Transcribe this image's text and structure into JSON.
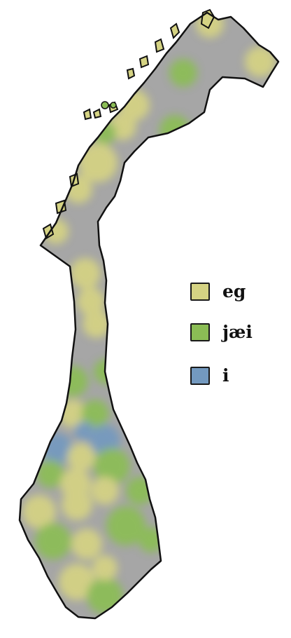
{
  "legend": [
    {
      "label": "eg",
      "color": "#d5d383"
    },
    {
      "label": "jæi",
      "color": "#8bbd55"
    },
    {
      "label": "i",
      "color": "#7399bf"
    }
  ],
  "colors": {
    "land": "#a6a6a6",
    "outline": "#111111",
    "eg": "#d5d383",
    "jaei": "#8bbd55",
    "i": "#7399bf"
  }
}
